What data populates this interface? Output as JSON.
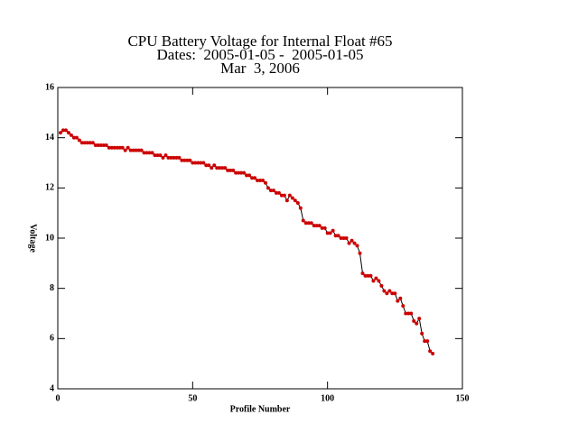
{
  "chart_data": {
    "type": "line",
    "title": [
      "CPU Battery Voltage for Internal Float #65",
      "Dates:  2005-01-05 -  2005-01-05",
      "Mar  3, 2006"
    ],
    "xlabel": "Profile Number",
    "ylabel": "Voltage",
    "xlim": [
      0,
      150
    ],
    "xticks": [
      0,
      50,
      100,
      150
    ],
    "ylim": [
      4,
      16
    ],
    "yticks": [
      4,
      6,
      8,
      10,
      12,
      14,
      16
    ],
    "x": [
      1,
      2,
      3,
      4,
      5,
      6,
      7,
      8,
      9,
      10,
      11,
      12,
      13,
      14,
      15,
      16,
      17,
      18,
      19,
      20,
      21,
      22,
      23,
      24,
      25,
      26,
      27,
      28,
      29,
      30,
      31,
      32,
      33,
      34,
      35,
      36,
      37,
      38,
      39,
      40,
      41,
      42,
      43,
      44,
      45,
      46,
      47,
      48,
      49,
      50,
      51,
      52,
      53,
      54,
      55,
      56,
      57,
      58,
      59,
      60,
      61,
      62,
      63,
      64,
      65,
      66,
      67,
      68,
      69,
      70,
      71,
      72,
      73,
      74,
      75,
      76,
      77,
      78,
      79,
      80,
      81,
      82,
      83,
      84,
      85,
      86,
      87,
      88,
      89,
      90,
      91,
      92,
      93,
      94,
      95,
      96,
      97,
      98,
      99,
      100,
      101,
      102,
      103,
      104,
      105,
      106,
      107,
      108,
      109,
      110,
      111,
      112,
      113,
      114,
      115,
      116,
      117,
      118,
      119,
      120,
      121,
      122,
      123,
      124,
      125,
      126,
      127,
      128,
      129,
      130,
      131,
      132,
      133,
      134,
      135,
      136,
      137,
      138,
      139
    ],
    "series": [
      {
        "color": "#cc0000",
        "line_color": "#000000",
        "values": [
          14.2,
          14.3,
          14.3,
          14.2,
          14.1,
          14.0,
          14.0,
          13.9,
          13.8,
          13.8,
          13.8,
          13.8,
          13.8,
          13.7,
          13.7,
          13.7,
          13.7,
          13.7,
          13.6,
          13.6,
          13.6,
          13.6,
          13.6,
          13.6,
          13.5,
          13.6,
          13.5,
          13.5,
          13.5,
          13.5,
          13.5,
          13.4,
          13.4,
          13.4,
          13.4,
          13.3,
          13.3,
          13.3,
          13.2,
          13.3,
          13.2,
          13.2,
          13.2,
          13.2,
          13.2,
          13.1,
          13.1,
          13.1,
          13.1,
          13.0,
          13.0,
          13.0,
          13.0,
          13.0,
          12.9,
          12.9,
          12.8,
          12.9,
          12.8,
          12.8,
          12.8,
          12.8,
          12.7,
          12.7,
          12.7,
          12.6,
          12.6,
          12.6,
          12.6,
          12.5,
          12.5,
          12.4,
          12.4,
          12.3,
          12.3,
          12.3,
          12.2,
          12.0,
          11.9,
          11.9,
          11.8,
          11.8,
          11.7,
          11.7,
          11.5,
          11.7,
          11.6,
          11.5,
          11.4,
          11.2,
          10.7,
          10.6,
          10.6,
          10.6,
          10.5,
          10.5,
          10.5,
          10.4,
          10.4,
          10.2,
          10.2,
          10.3,
          10.1,
          10.1,
          10.0,
          10.0,
          10.0,
          9.8,
          9.9,
          9.8,
          9.7,
          9.4,
          8.6,
          8.5,
          8.5,
          8.5,
          8.3,
          8.4,
          8.3,
          8.1,
          7.9,
          7.8,
          7.9,
          7.8,
          7.8,
          7.5,
          7.6,
          7.3,
          7.0,
          7.0,
          7.0,
          6.7,
          6.6,
          6.8,
          6.2,
          5.9,
          5.9,
          5.5,
          5.4
        ]
      }
    ]
  }
}
